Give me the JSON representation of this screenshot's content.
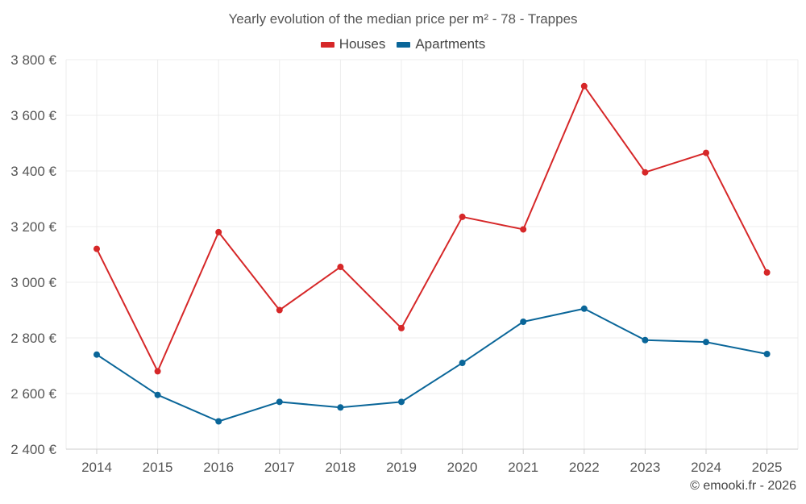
{
  "chart_data": {
    "type": "line",
    "title": "Yearly evolution of the median price per m² - 78 - Trappes",
    "categories": [
      "2014",
      "2015",
      "2016",
      "2017",
      "2018",
      "2019",
      "2020",
      "2021",
      "2022",
      "2023",
      "2024",
      "2025"
    ],
    "series": [
      {
        "name": "Houses",
        "color": "#d62728",
        "values": [
          3120,
          2680,
          3180,
          2900,
          3055,
          2835,
          3235,
          3190,
          3705,
          3395,
          3465,
          3035
        ]
      },
      {
        "name": "Apartments",
        "color": "#0a6699",
        "values": [
          2740,
          2595,
          2500,
          2570,
          2550,
          2570,
          2710,
          2858,
          2905,
          2792,
          2785,
          2742
        ]
      }
    ],
    "ylim": [
      2400,
      3800
    ],
    "yticks": [
      2400,
      2600,
      2800,
      3000,
      3200,
      3400,
      3600,
      3800
    ],
    "ytick_labels": [
      "2 400 €",
      "2 600 €",
      "2 800 €",
      "3 000 €",
      "3 200 €",
      "3 400 €",
      "3 600 €",
      "3 800 €"
    ],
    "xlabel": "",
    "ylabel": "",
    "grid": true,
    "legend_position": "top-center"
  },
  "credit": "© emooki.fr - 2026"
}
